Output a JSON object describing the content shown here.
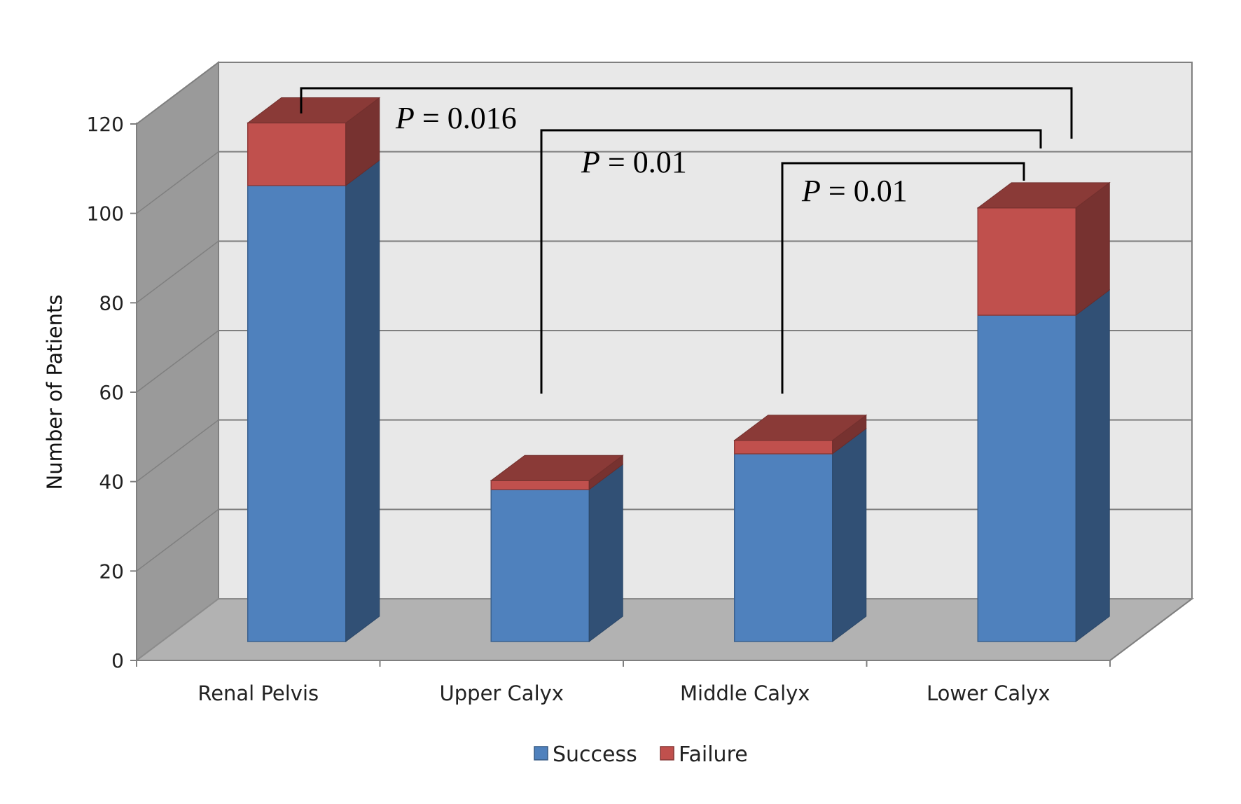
{
  "chart_data": {
    "type": "bar",
    "stacked": true,
    "three_d": true,
    "categories": [
      "Renal Pelvis",
      "Upper Calyx",
      "Middle Calyx",
      "Lower Calyx"
    ],
    "series": [
      {
        "name": "Success",
        "values": [
          102,
          34,
          42,
          73
        ],
        "color": "#4f81bd"
      },
      {
        "name": "Failure",
        "values": [
          14,
          2,
          3,
          24
        ],
        "color": "#c0504d"
      }
    ],
    "ylabel": "Number of Patients",
    "xlabel": "",
    "title": "",
    "ylim": [
      0,
      120
    ],
    "yticks": [
      0,
      20,
      40,
      60,
      80,
      100,
      120
    ],
    "grid": true,
    "legend_position": "bottom",
    "annotations": [
      {
        "label": "P",
        "text": " = 0.016",
        "from": "Renal Pelvis",
        "to": "Lower Calyx"
      },
      {
        "label": "P",
        "text": " = 0.01",
        "from": "Upper Calyx",
        "to": "Lower Calyx"
      },
      {
        "label": "P",
        "text": " = 0.01",
        "from": "Middle Calyx",
        "to": "Lower Calyx"
      }
    ]
  }
}
